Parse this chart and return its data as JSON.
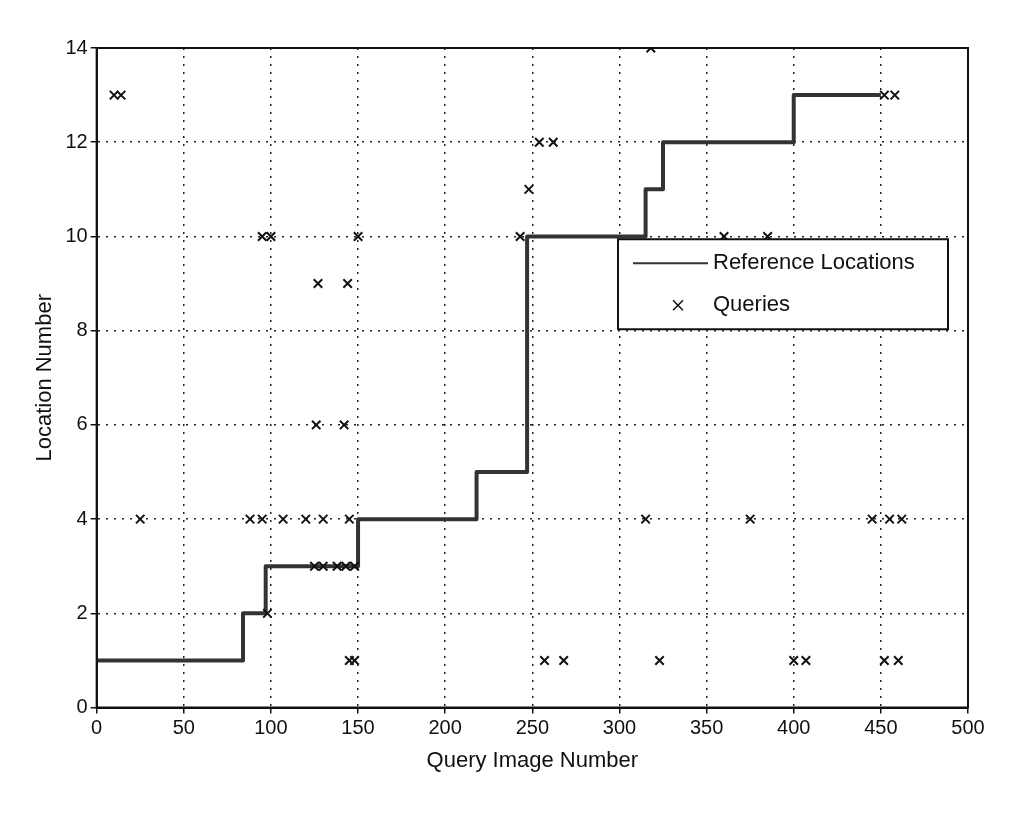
{
  "chart_data": {
    "type": "scatter",
    "xlabel": "Query Image Number",
    "ylabel": "Location Number",
    "xlim": [
      0,
      500
    ],
    "ylim": [
      0,
      14
    ],
    "xticks": [
      0,
      50,
      100,
      150,
      200,
      250,
      300,
      350,
      400,
      450,
      500
    ],
    "yticks": [
      0,
      2,
      4,
      6,
      8,
      10,
      12,
      14
    ],
    "grid": true,
    "legend": "right",
    "series": [
      {
        "name": "Reference Locations",
        "type": "step",
        "marker": "none",
        "color": "#333333",
        "x": [
          0,
          84,
          97,
          150,
          218,
          247,
          315,
          325,
          400,
          450
        ],
        "values": [
          1,
          2,
          3,
          4,
          5,
          10,
          11,
          12,
          13,
          13
        ]
      },
      {
        "name": "Queries",
        "marker": "cross",
        "color": "#111111",
        "x": [
          10,
          14,
          25,
          88,
          95,
          107,
          120,
          130,
          145,
          125,
          130,
          138,
          143,
          148,
          98,
          145,
          148,
          126,
          142,
          127,
          144,
          95,
          100,
          150,
          243,
          248,
          254,
          262,
          318,
          360,
          385,
          452,
          458,
          315,
          375,
          445,
          455,
          462,
          257,
          268,
          323,
          400,
          407,
          452,
          460
        ],
        "values": [
          13,
          13,
          4,
          4,
          4,
          4,
          4,
          4,
          4,
          3,
          3,
          3,
          3,
          3,
          2,
          1,
          1,
          6,
          6,
          9,
          9,
          10,
          10,
          10,
          10,
          11,
          12,
          12,
          14,
          10,
          10,
          13,
          13,
          4,
          4,
          4,
          4,
          4,
          1,
          1,
          1,
          1,
          1,
          1,
          1
        ]
      }
    ]
  }
}
